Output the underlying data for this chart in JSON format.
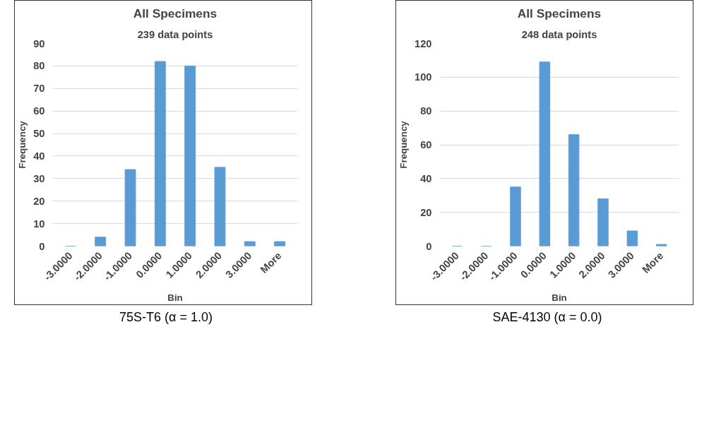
{
  "chart_data": [
    {
      "type": "bar",
      "title": "All Specimens",
      "subtitle": "239 data points",
      "xlabel": "Bin",
      "ylabel": "Frequency",
      "categories": [
        "-3.0000",
        "-2.0000",
        "-1.0000",
        "0.0000",
        "1.0000",
        "2.0000",
        "3.0000",
        "More"
      ],
      "values": [
        0,
        4,
        34,
        82,
        80,
        35,
        2,
        2
      ],
      "color": "#5b9bd5",
      "ylim": [
        0,
        90
      ],
      "yticks": [
        0,
        10,
        20,
        30,
        40,
        50,
        60,
        70,
        80,
        90
      ],
      "grid": "y",
      "annotations": [
        "75S-T6 (α = 1.0)"
      ]
    },
    {
      "type": "bar",
      "title": "All Specimens",
      "subtitle": "248 data points",
      "xlabel": "Bin",
      "ylabel": "Frequency",
      "categories": [
        "-3.0000",
        "-2.0000",
        "-1.0000",
        "0.0000",
        "1.0000",
        "2.0000",
        "3.0000",
        "More"
      ],
      "values": [
        0,
        0,
        35,
        109,
        66,
        28,
        9,
        1
      ],
      "color": "#5b9bd5",
      "ylim": [
        0,
        120
      ],
      "yticks": [
        0,
        20,
        40,
        60,
        80,
        100,
        120
      ],
      "grid": "y",
      "annotations": [
        "SAE-4130 (α = 0.0)"
      ]
    }
  ]
}
